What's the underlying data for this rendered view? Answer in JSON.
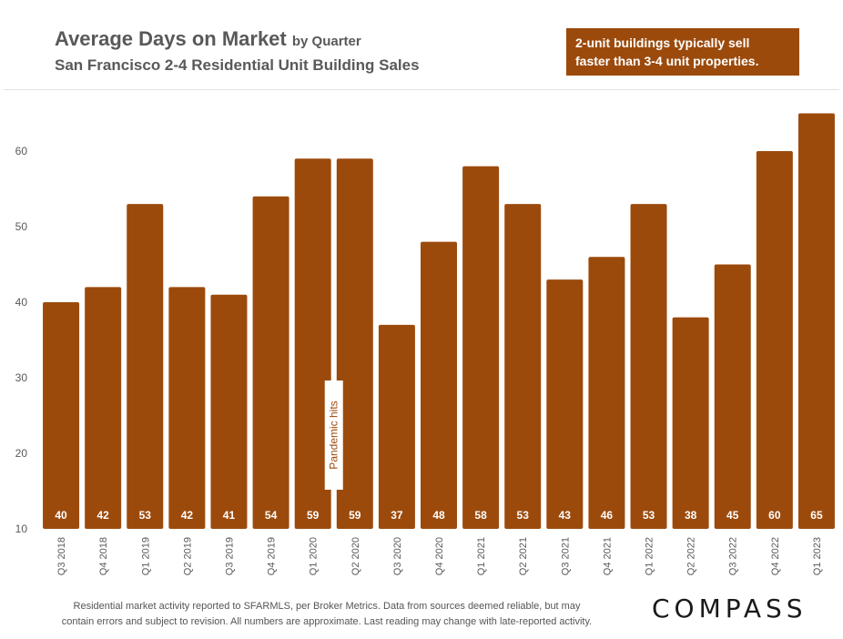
{
  "header": {
    "title": "Average Days on Market",
    "title_suffix": "by Quarter",
    "subtitle": "San Francisco 2-4 Residential Unit Building Sales"
  },
  "callout": {
    "line1": "2-unit buildings typically sell",
    "line2": "faster than 3-4 unit properties."
  },
  "chart_data": {
    "type": "bar",
    "title": "Average Days on Market by Quarter",
    "subtitle": "San Francisco 2-4 Residential Unit Building Sales",
    "xlabel": "",
    "ylabel": "",
    "ylim": [
      10,
      68
    ],
    "yticks": [
      10,
      20,
      30,
      40,
      50,
      60
    ],
    "grid": false,
    "categories": [
      "Q3 2018",
      "Q4 2018",
      "Q1 2019",
      "Q2 2019",
      "Q3 2019",
      "Q4 2019",
      "Q1 2020",
      "Q2 2020",
      "Q3 2020",
      "Q4 2020",
      "Q1 2021",
      "Q2 2021",
      "Q3 2021",
      "Q4 2021",
      "Q1 2022",
      "Q2 2022",
      "Q3 2022",
      "Q4 2022",
      "Q1 2023"
    ],
    "values": [
      40,
      42,
      53,
      42,
      41,
      54,
      59,
      59,
      37,
      48,
      58,
      53,
      43,
      46,
      53,
      38,
      45,
      60,
      65
    ],
    "bar_color": "#9c4a0c",
    "annotation": {
      "text": "Pandemic hits",
      "category": "Q1 2020"
    }
  },
  "footer": {
    "line1": "Residential market activity reported to SFARMLS, per Broker Metrics. Data from sources deemed reliable, but may",
    "line2": "contain errors and subject to revision. All numbers are approximate. Last reading may change with late-reported activity."
  },
  "logo": {
    "text": "COMPASS"
  },
  "colors": {
    "bar": "#9c4a0c",
    "callout_bg": "#9c4a0c",
    "title": "#595959",
    "axis_text": "#595959"
  }
}
